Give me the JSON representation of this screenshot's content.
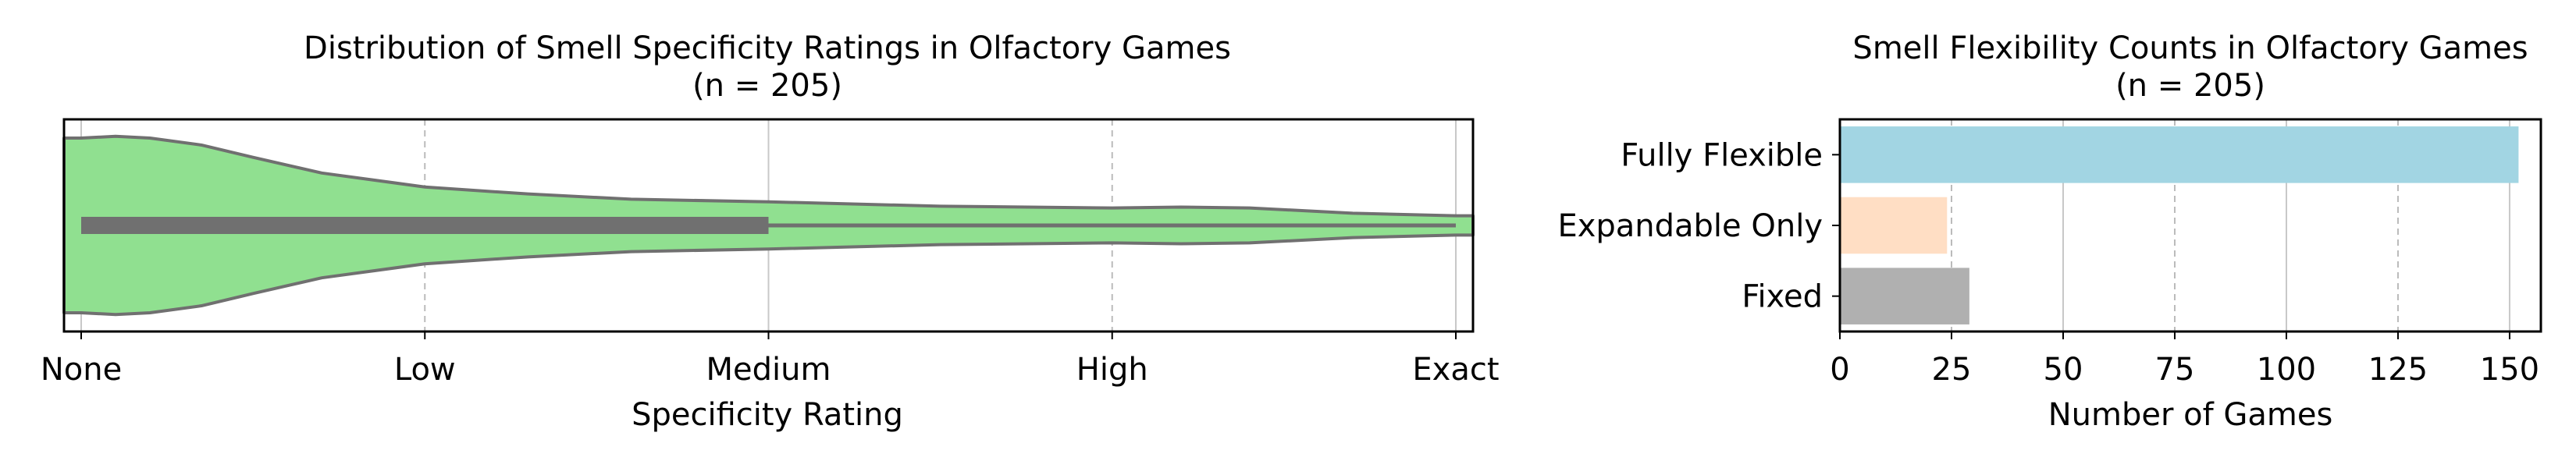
{
  "chart_data": [
    {
      "type": "violin",
      "title": "Distribution of Smell Specificity Ratings in Olfactory Games",
      "subtitle": "(n = 205)",
      "xlabel": "Specificity Rating",
      "ylabel": "",
      "categories": [
        "None",
        "Low",
        "Medium",
        "High",
        "Exact"
      ],
      "xlim": [
        -0.05,
        4.05
      ],
      "grid": true,
      "color": "#90E090",
      "edge_color": "#707070",
      "box": {
        "q1": 0,
        "q3": 2,
        "whisker_low": 0,
        "whisker_high": 4
      },
      "density": [
        {
          "x": -0.05,
          "w": 1.0
        },
        {
          "x": 0.0,
          "w": 1.0
        },
        {
          "x": 0.1,
          "w": 1.02
        },
        {
          "x": 0.2,
          "w": 1.0
        },
        {
          "x": 0.35,
          "w": 0.92
        },
        {
          "x": 0.5,
          "w": 0.78
        },
        {
          "x": 0.7,
          "w": 0.6
        },
        {
          "x": 1.0,
          "w": 0.44
        },
        {
          "x": 1.3,
          "w": 0.36
        },
        {
          "x": 1.6,
          "w": 0.3
        },
        {
          "x": 2.0,
          "w": 0.27
        },
        {
          "x": 2.5,
          "w": 0.22
        },
        {
          "x": 3.0,
          "w": 0.2
        },
        {
          "x": 3.2,
          "w": 0.21
        },
        {
          "x": 3.4,
          "w": 0.2
        },
        {
          "x": 3.7,
          "w": 0.14
        },
        {
          "x": 4.0,
          "w": 0.11
        },
        {
          "x": 4.05,
          "w": 0.11
        }
      ]
    },
    {
      "type": "bar",
      "orientation": "horizontal",
      "title": "Smell Flexibility Counts in Olfactory Games",
      "subtitle": "(n = 205)",
      "xlabel": "Number of Games",
      "ylabel": "",
      "categories": [
        "Fully Flexible",
        "Expandable Only",
        "Fixed"
      ],
      "values": [
        152,
        24,
        29
      ],
      "colors": [
        "#A2D5E3",
        "#FFDEC4",
        "#B0B0B0"
      ],
      "xlim": [
        0,
        157
      ],
      "xticks": [
        0,
        25,
        50,
        75,
        100,
        125,
        150
      ],
      "grid": true
    }
  ]
}
